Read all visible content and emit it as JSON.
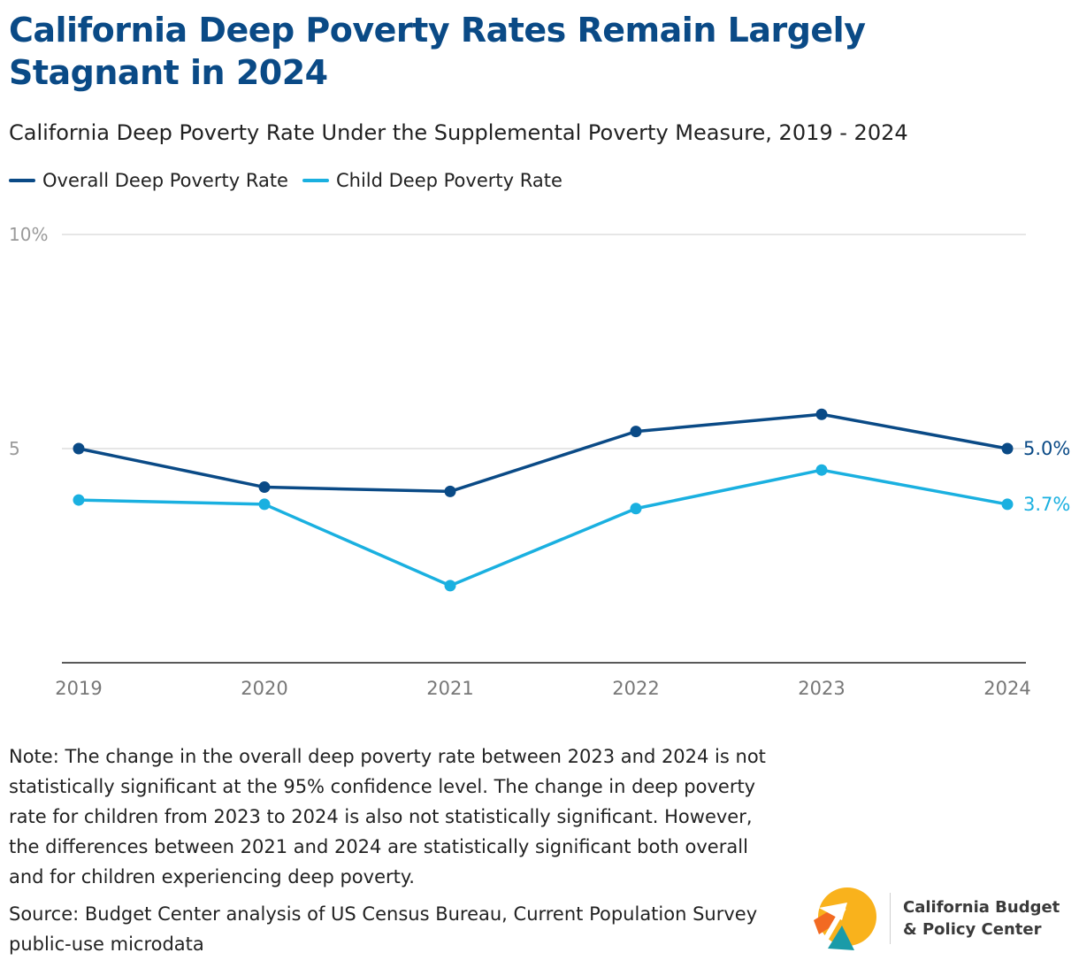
{
  "title": "California Deep Poverty Rates Remain Largely Stagnant in 2024",
  "subtitle": "California Deep Poverty Rate Under the Supplemental Poverty Measure, 2019 - 2024",
  "legend": [
    {
      "label": "Overall Deep Poverty Rate",
      "color": "#0a4a86"
    },
    {
      "label": "Child Deep Poverty Rate",
      "color": "#1ab0e0"
    }
  ],
  "chart_data": {
    "type": "line",
    "x": [
      "2019",
      "2020",
      "2021",
      "2022",
      "2023",
      "2024"
    ],
    "series": [
      {
        "name": "Overall Deep Poverty Rate",
        "color": "#0a4a86",
        "values": [
          5.0,
          4.1,
          4.0,
          5.4,
          5.8,
          5.0
        ],
        "end_label": "5.0%"
      },
      {
        "name": "Child Deep Poverty Rate",
        "color": "#1ab0e0",
        "values": [
          3.8,
          3.7,
          1.8,
          3.6,
          4.5,
          3.7
        ],
        "end_label": "3.7%"
      }
    ],
    "ylim": [
      0,
      10
    ],
    "yticks": [
      {
        "value": 10,
        "label": "10%"
      },
      {
        "value": 5,
        "label": "5"
      }
    ],
    "grid": true,
    "legend_position": "top-left",
    "title": "California Deep Poverty Rate Under the Supplemental Poverty Measure, 2019 - 2024",
    "xlabel": "",
    "ylabel": ""
  },
  "note": "Note: The change in the overall deep poverty rate between 2023 and 2024 is not statistically significant at the 95% confidence level. The change in deep poverty rate for children from 2023 to 2024 is also not statistically significant. However, the differences between 2021 and 2024 are statistically significant both overall and for children experiencing deep poverty.",
  "source": "Source: Budget Center analysis of US Census Bureau, Current Population Survey public-use microdata",
  "logo": {
    "line1": "California Budget",
    "line2": "& Policy Center",
    "colors": {
      "yellow": "#f9b21c",
      "orange": "#f26a22",
      "teal": "#1a9ba8"
    }
  }
}
